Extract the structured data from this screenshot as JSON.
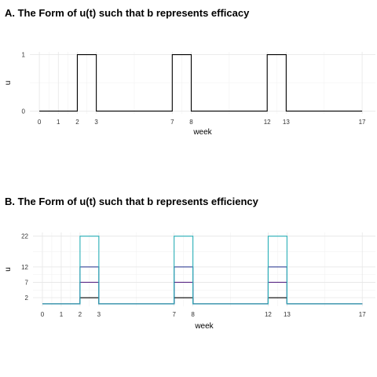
{
  "panels": [
    {
      "title": "A. The Form of u(t) such that b represents efficacy",
      "chart_data": {
        "type": "line",
        "title": "A. The Form of u(t) such that b represents efficacy",
        "xlabel": "week",
        "ylabel": "u",
        "x_ticks": [
          0,
          1,
          2,
          3,
          7,
          8,
          12,
          13,
          17
        ],
        "y_ticks": [
          0,
          1
        ],
        "xlim": [
          -0.5,
          17.7
        ],
        "ylim": [
          -0.05,
          1.05
        ],
        "grid": true,
        "series": [
          {
            "color": "#000000",
            "x": [
              0,
              2,
              2,
              3,
              3,
              7,
              7,
              8,
              8,
              12,
              12,
              13,
              13,
              17
            ],
            "y": [
              0,
              0,
              1,
              1,
              0,
              0,
              1,
              1,
              0,
              0,
              1,
              1,
              0,
              0
            ]
          }
        ]
      }
    },
    {
      "title": "B. The Form of u(t) such that b represents efficiency",
      "chart_data": {
        "type": "line",
        "title": "B. The Form of u(t) such that b represents efficiency",
        "xlabel": "week",
        "ylabel": "u",
        "x_ticks": [
          0,
          1,
          2,
          3,
          7,
          8,
          12,
          13,
          17
        ],
        "y_ticks": [
          2,
          7,
          12,
          22
        ],
        "xlim": [
          -0.5,
          17.7
        ],
        "ylim": [
          -0.8,
          23.2
        ],
        "grid": true,
        "series": [
          {
            "color": "#000000",
            "x": [
              0,
              2,
              2,
              3,
              3,
              7,
              7,
              8,
              8,
              12,
              12,
              13,
              13,
              17
            ],
            "y": [
              0,
              0,
              2,
              2,
              0,
              0,
              2,
              2,
              0,
              0,
              2,
              2,
              0,
              0
            ]
          },
          {
            "color": "#5b2a86",
            "x": [
              0,
              2,
              2,
              3,
              3,
              7,
              7,
              8,
              8,
              12,
              12,
              13,
              13,
              17
            ],
            "y": [
              0,
              0,
              7,
              7,
              0,
              0,
              7,
              7,
              0,
              0,
              7,
              7,
              0,
              0
            ]
          },
          {
            "color": "#1f2d8a",
            "x": [
              0,
              2,
              2,
              3,
              3,
              7,
              7,
              8,
              8,
              12,
              12,
              13,
              13,
              17
            ],
            "y": [
              0,
              0,
              12,
              12,
              0,
              0,
              12,
              12,
              0,
              0,
              12,
              12,
              0,
              0
            ]
          },
          {
            "color": "#2ab0b8",
            "x": [
              0,
              2,
              2,
              3,
              3,
              7,
              7,
              8,
              8,
              12,
              12,
              13,
              13,
              17
            ],
            "y": [
              0,
              0,
              22,
              22,
              0,
              0,
              22,
              22,
              0,
              0,
              22,
              22,
              0,
              0
            ]
          }
        ]
      }
    }
  ]
}
